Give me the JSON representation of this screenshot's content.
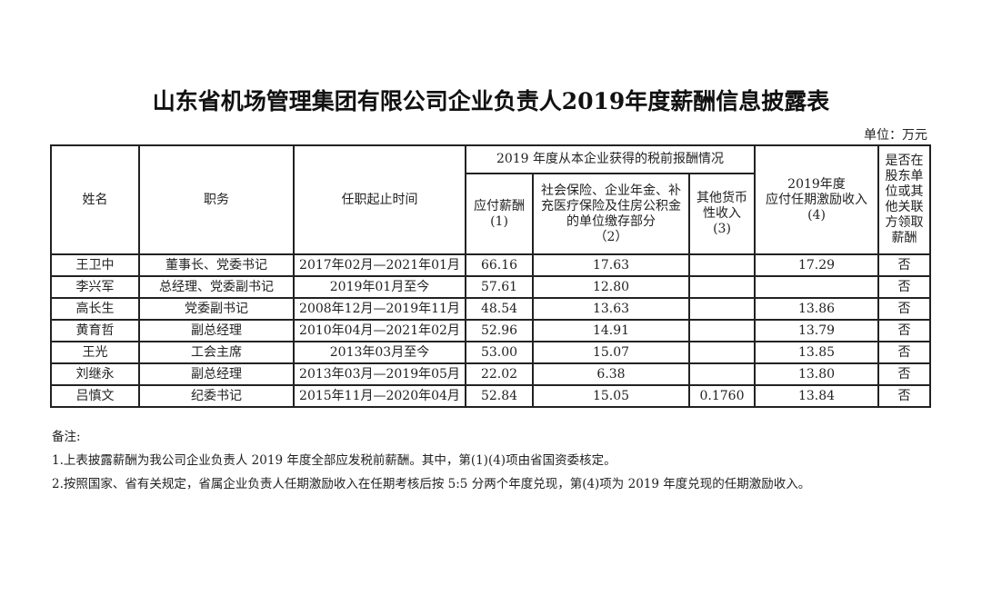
{
  "title": "山东省机场管理集团有限公司企业负责人2019年度薪酬信息披露表",
  "unit": "单位：万元",
  "headers": {
    "name": "姓名",
    "position": "职务",
    "term": "任职起止时间",
    "group": "2019 年度从本企业获得的税前报酬情况",
    "salary": "应付薪酬\n(1)",
    "insurance": "社会保险、企业年金、补充医疗保险及住房公积金的单位缴存部分\n（2）",
    "other": "其他货币性收入\n(3)",
    "incentive": "2019年度\n应付任期激励收入\n(4)",
    "related": "是否在股东单位或其他关联方领取薪酬"
  },
  "rows": [
    {
      "name": "王卫中",
      "position": "董事长、党委书记",
      "term": "2017年02月—2021年01月",
      "salary": "66.16",
      "insurance": "17.63",
      "other": "",
      "incentive": "17.29",
      "related": "否"
    },
    {
      "name": "李兴军",
      "position": "总经理、党委副书记",
      "term": "2019年01月至今",
      "salary": "57.61",
      "insurance": "12.80",
      "other": "",
      "incentive": "",
      "related": "否"
    },
    {
      "name": "高长生",
      "position": "党委副书记",
      "term": "2008年12月—2019年11月",
      "salary": "48.54",
      "insurance": "13.63",
      "other": "",
      "incentive": "13.86",
      "related": "否"
    },
    {
      "name": "黄育哲",
      "position": "副总经理",
      "term": "2010年04月—2021年02月",
      "salary": "52.96",
      "insurance": "14.91",
      "other": "",
      "incentive": "13.79",
      "related": "否"
    },
    {
      "name": "王光",
      "position": "工会主席",
      "term": "2013年03月至今",
      "salary": "53.00",
      "insurance": "15.07",
      "other": "",
      "incentive": "13.85",
      "related": "否"
    },
    {
      "name": "刘继永",
      "position": "副总经理",
      "term": "2013年03月—2019年05月",
      "salary": "22.02",
      "insurance": "6.38",
      "other": "",
      "incentive": "13.80",
      "related": "否"
    },
    {
      "name": "吕慎文",
      "position": "纪委书记",
      "term": "2015年11月—2020年04月",
      "salary": "52.84",
      "insurance": "15.05",
      "other": "0.1760",
      "incentive": "13.84",
      "related": "否"
    }
  ],
  "notes": [
    "备注:",
    "1.上表披露薪酬为我公司企业负责人 2019 年度全部应发税前薪酬。其中，第(1)(4)项由省国资委核定。",
    "2.按照国家、省有关规定，省属企业负责人任期激励收入在任期考核后按 5:5 分两个年度兑现，第(4)项为 2019 年度兑现的任期激励收入。"
  ]
}
